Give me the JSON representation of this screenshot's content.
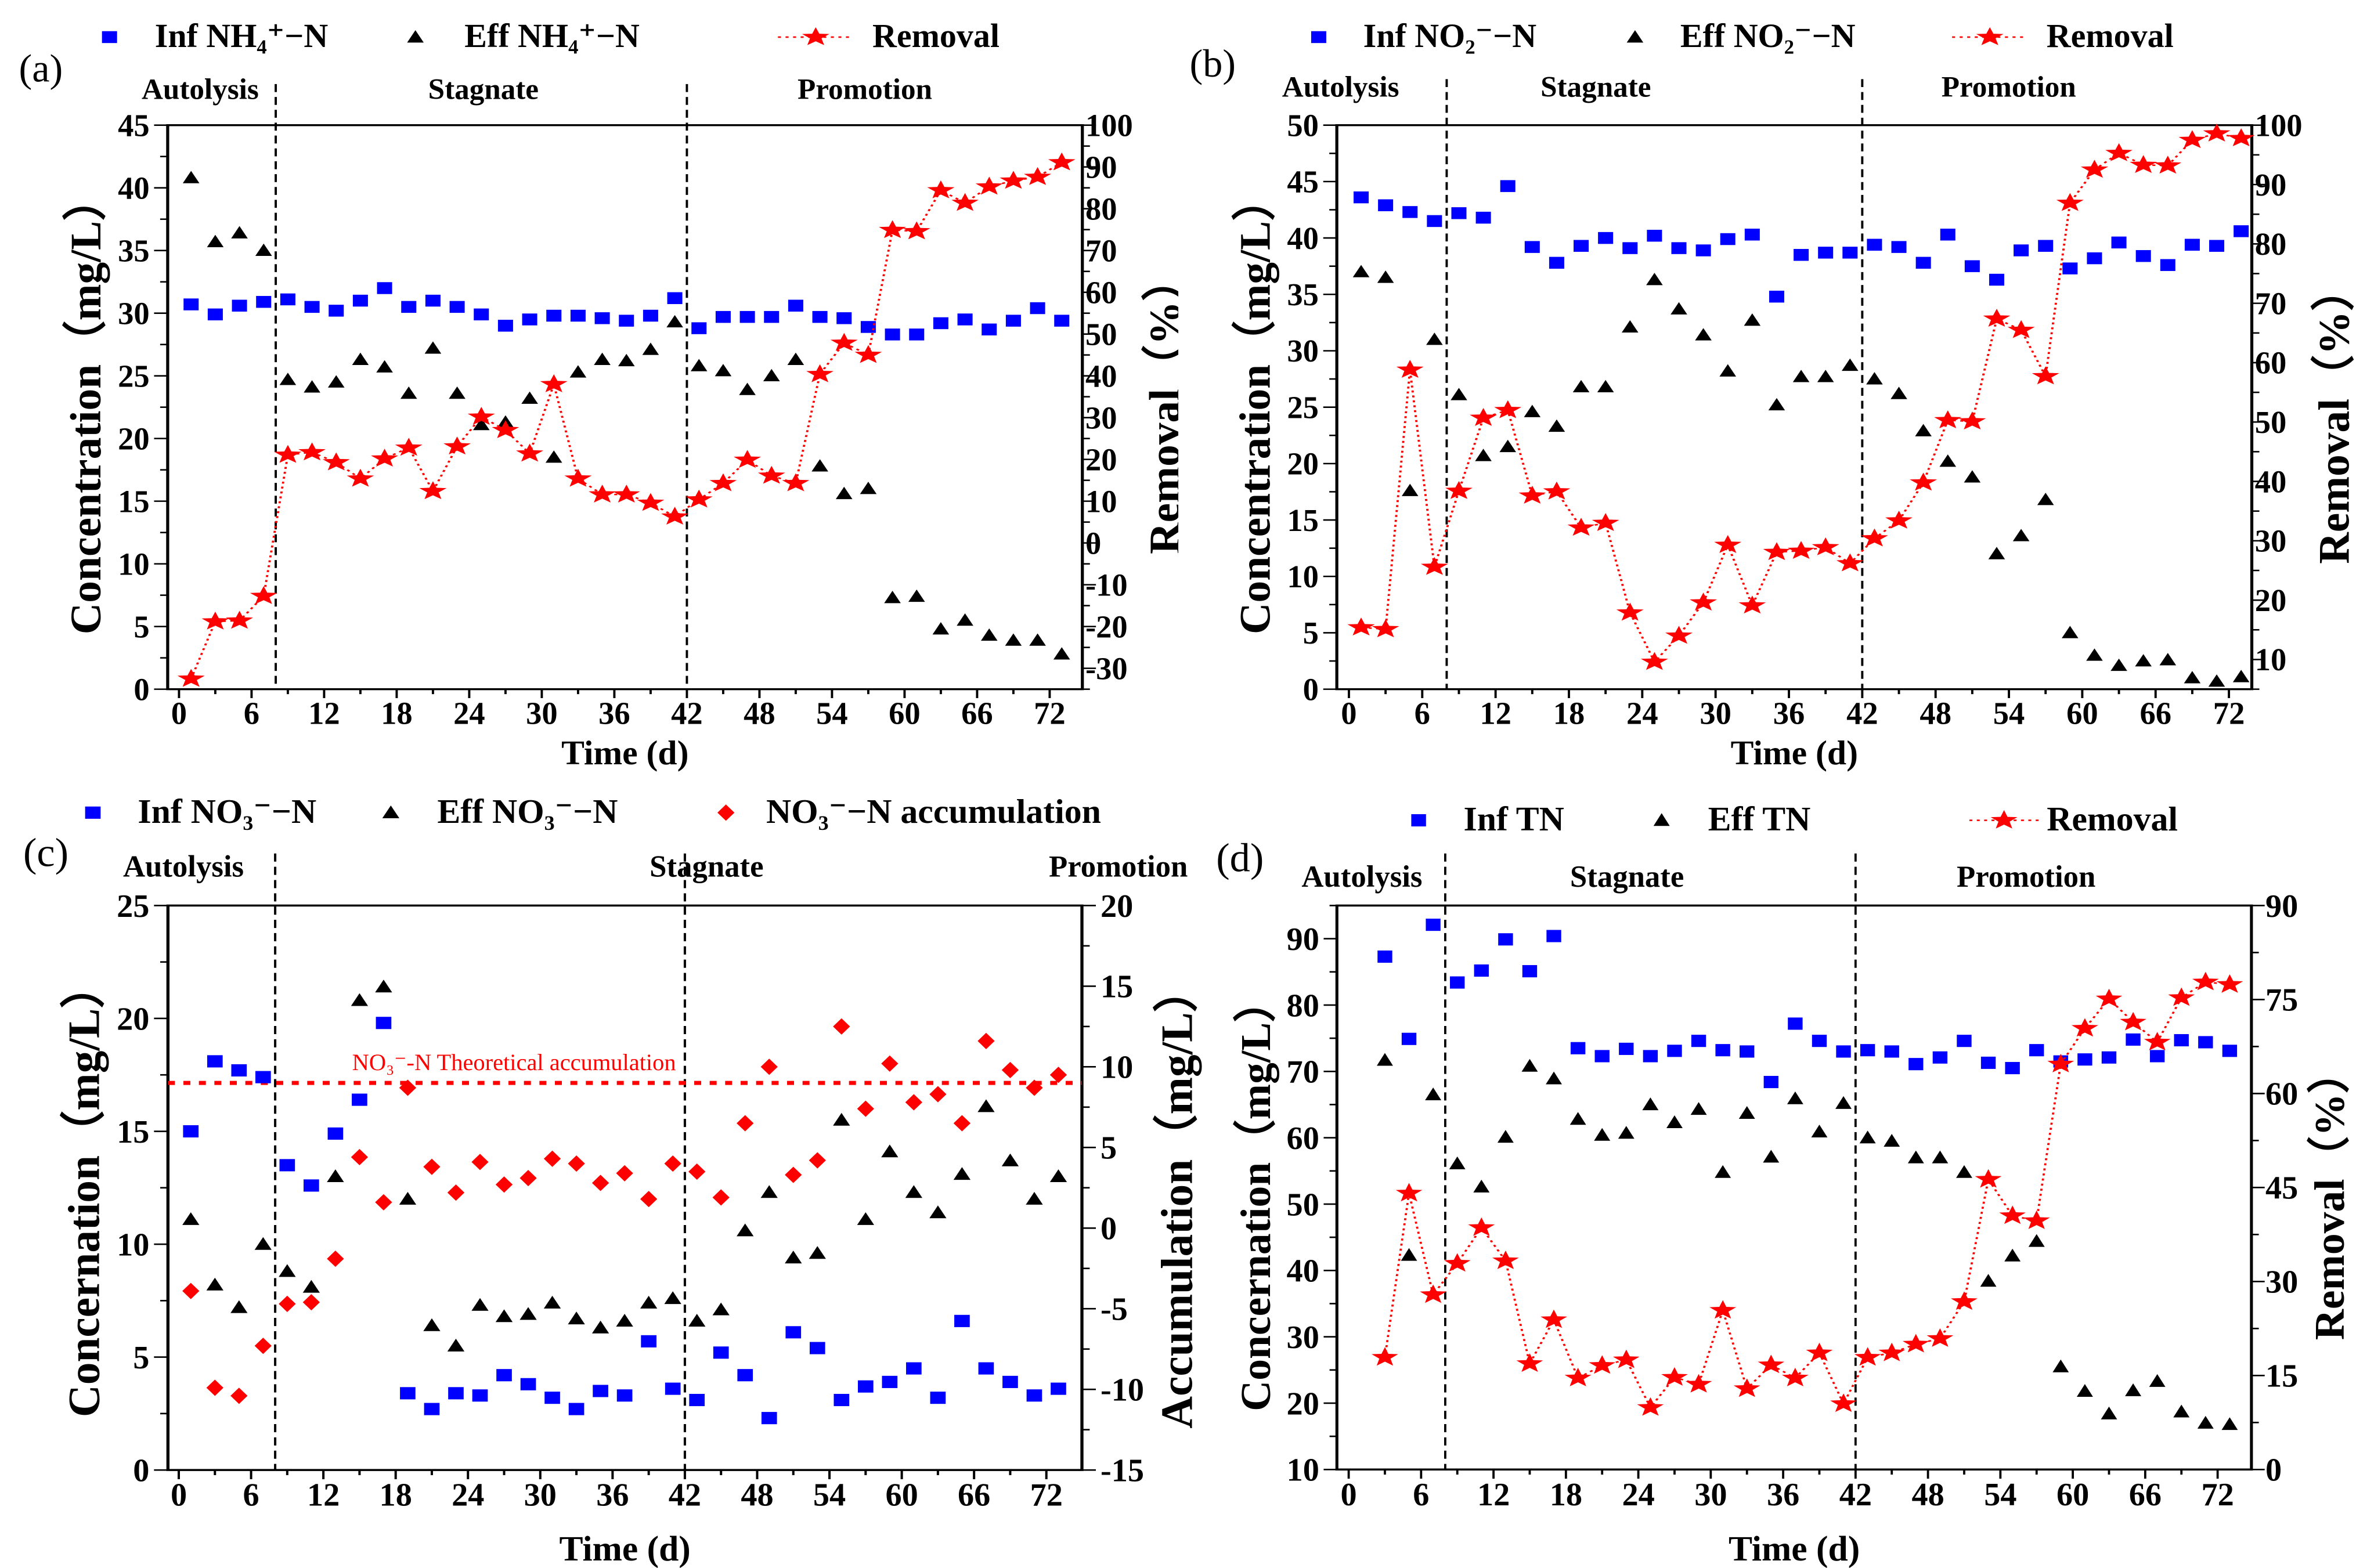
{
  "colors": {
    "inf": "#0000ff",
    "eff": "#000000",
    "removal": "#ff0000"
  },
  "chart_data": [
    {
      "type": "scatter",
      "panel_label": "(a)",
      "xlabel": "Time (d)",
      "ylabel_left": "Concentration（mg/L）",
      "ylabel_right": "Removal（%）",
      "ylim_left": [
        0,
        45
      ],
      "ylim_right": [
        -35,
        100
      ],
      "xticks": [
        0,
        6,
        12,
        18,
        24,
        30,
        36,
        42,
        48,
        54,
        60,
        66,
        72
      ],
      "yticks_left": [
        0,
        5,
        10,
        15,
        20,
        25,
        30,
        35,
        40,
        45
      ],
      "yticks_right": [
        -30,
        -20,
        -10,
        0,
        10,
        20,
        30,
        40,
        50,
        60,
        70,
        80,
        90,
        100
      ],
      "phases": [
        "Autolysis",
        "Stagnate",
        "Promotion"
      ],
      "phase_boundaries": [
        8,
        42
      ],
      "x": [
        1,
        3,
        5,
        7,
        9,
        11,
        13,
        15,
        17,
        19,
        21,
        23,
        25,
        27,
        29,
        31,
        33,
        35,
        37,
        39,
        41,
        43,
        45,
        47,
        49,
        51,
        53,
        55,
        57,
        59,
        61,
        63,
        65,
        67,
        69,
        71,
        73
      ],
      "series": [
        {
          "name": "Inf NH₄⁺−N",
          "marker": "square",
          "color": "#0000ff",
          "axis": "left",
          "line": false,
          "y": [
            30.7,
            29.9,
            30.6,
            30.9,
            31.1,
            30.5,
            30.2,
            31.0,
            32.0,
            30.5,
            31.0,
            30.5,
            29.9,
            29.0,
            29.5,
            29.8,
            29.8,
            29.6,
            29.4,
            29.8,
            31.2,
            28.8,
            29.7,
            29.7,
            29.7,
            30.6,
            29.7,
            29.6,
            28.9,
            28.3,
            28.3,
            29.2,
            29.5,
            28.7,
            29.4,
            30.4,
            29.4
          ]
        },
        {
          "name": "Eff NH₄⁺−N",
          "marker": "triangle",
          "color": "#000000",
          "axis": "left",
          "line": false,
          "y": [
            40.8,
            35.7,
            36.4,
            35.0,
            24.7,
            24.1,
            24.5,
            26.3,
            25.7,
            23.6,
            27.2,
            23.6,
            21.1,
            21.3,
            23.2,
            18.5,
            25.3,
            26.3,
            26.2,
            27.1,
            29.3,
            25.8,
            25.4,
            23.9,
            25.0,
            26.3,
            17.8,
            15.6,
            16.0,
            7.3,
            7.4,
            4.8,
            5.5,
            4.3,
            3.9,
            3.9,
            2.8
          ]
        },
        {
          "name": "Removal",
          "marker": "star",
          "color": "#ff0000",
          "axis": "right",
          "line": true,
          "y": [
            -32.5,
            -18.8,
            -18.6,
            -12.7,
            21.1,
            21.7,
            19.3,
            15.4,
            20.2,
            22.8,
            12.4,
            23.1,
            30.2,
            27.0,
            21.4,
            38.0,
            15.4,
            11.6,
            11.6,
            9.6,
            6.3,
            10.4,
            14.3,
            19.9,
            16.1,
            14.3,
            40.4,
            47.9,
            45.0,
            74.9,
            74.6,
            84.4,
            81.4,
            85.3,
            86.7,
            87.6,
            91.1
          ]
        }
      ]
    },
    {
      "type": "scatter",
      "panel_label": "(b)",
      "xlabel": "Time (d)",
      "ylabel_left": "Concentration（mg/L）",
      "ylabel_right": "Removal（%）",
      "ylim_left": [
        0,
        50
      ],
      "ylim_right": [
        5,
        100
      ],
      "xticks": [
        0,
        6,
        12,
        18,
        24,
        30,
        36,
        42,
        48,
        54,
        60,
        66,
        72
      ],
      "yticks_left": [
        0,
        5,
        10,
        15,
        20,
        25,
        30,
        35,
        40,
        45,
        50
      ],
      "yticks_right": [
        10,
        20,
        30,
        40,
        50,
        60,
        70,
        80,
        90,
        100
      ],
      "phases": [
        "Autolysis",
        "Stagnate",
        "Promotion"
      ],
      "phase_boundaries": [
        8,
        42
      ],
      "x": [
        1,
        3,
        5,
        7,
        9,
        11,
        13,
        15,
        17,
        19,
        21,
        23,
        25,
        27,
        29,
        31,
        33,
        35,
        37,
        39,
        41,
        43,
        45,
        47,
        49,
        51,
        53,
        55,
        57,
        59,
        61,
        63,
        65,
        67,
        69,
        71,
        73
      ],
      "series": [
        {
          "name": "Inf NO₂⁻−N",
          "marker": "square",
          "color": "#0000ff",
          "axis": "left",
          "line": false,
          "y": [
            43.6,
            42.9,
            42.3,
            41.5,
            42.2,
            41.8,
            44.6,
            39.2,
            37.8,
            39.3,
            40.0,
            39.1,
            40.2,
            39.1,
            38.9,
            39.9,
            40.3,
            34.8,
            38.5,
            38.7,
            38.7,
            39.4,
            39.2,
            37.8,
            40.3,
            37.5,
            36.3,
            38.9,
            39.3,
            37.3,
            38.2,
            39.6,
            38.4,
            37.6,
            39.4,
            39.3,
            40.6
          ]
        },
        {
          "name": "Eff NO₂⁻−N",
          "marker": "triangle",
          "color": "#000000",
          "axis": "left",
          "line": false,
          "y": [
            37.0,
            36.5,
            17.6,
            31.0,
            26.1,
            20.7,
            21.5,
            24.6,
            23.3,
            26.8,
            26.8,
            32.1,
            36.3,
            33.7,
            31.4,
            28.2,
            32.7,
            25.2,
            27.7,
            27.7,
            28.7,
            27.5,
            26.2,
            22.9,
            20.2,
            18.8,
            12.0,
            13.6,
            16.8,
            5.0,
            3.0,
            2.1,
            2.5,
            2.6,
            1.0,
            0.7,
            1.1
          ]
        },
        {
          "name": "Removal",
          "marker": "star",
          "color": "#ff0000",
          "axis": "right",
          "line": true,
          "y": [
            15.4,
            15.1,
            58.8,
            25.6,
            38.4,
            50.7,
            52.0,
            37.6,
            38.3,
            32.2,
            33.0,
            17.9,
            9.6,
            14.0,
            19.6,
            29.3,
            19.1,
            28.1,
            28.3,
            28.9,
            26.2,
            30.4,
            33.4,
            39.8,
            50.3,
            50.1,
            67.4,
            65.5,
            57.7,
            86.9,
            92.5,
            95.3,
            93.3,
            93.2,
            97.5,
            98.6,
            97.8
          ]
        }
      ]
    },
    {
      "type": "scatter",
      "panel_label": "(c)",
      "xlabel": "Time (d)",
      "ylabel_left": "Concernation（mg/L）",
      "ylabel_right": "Accumulation（mg/L）",
      "ylim_left": [
        0,
        25
      ],
      "ylim_right": [
        -15,
        20
      ],
      "xticks": [
        0,
        6,
        12,
        18,
        24,
        30,
        36,
        42,
        48,
        54,
        60,
        66,
        72
      ],
      "yticks_left": [
        0,
        5,
        10,
        15,
        20,
        25
      ],
      "yticks_right": [
        -15,
        -10,
        -5,
        0,
        5,
        10,
        15,
        20
      ],
      "phases": [
        "Autolysis",
        "Stagnate",
        "Promotion"
      ],
      "phase_boundaries": [
        8,
        42
      ],
      "reference_line": {
        "label": "NO₃⁻-N Theoretical accumulation",
        "axis": "right",
        "value": 9
      },
      "x": [
        1,
        3,
        5,
        7,
        9,
        11,
        13,
        15,
        17,
        19,
        21,
        23,
        25,
        27,
        29,
        31,
        33,
        35,
        37,
        39,
        41,
        43,
        45,
        47,
        49,
        51,
        53,
        55,
        57,
        59,
        61,
        63,
        65,
        67,
        69,
        71,
        73
      ],
      "series": [
        {
          "name": "Inf NO₃⁻−N",
          "marker": "square",
          "color": "#0000ff",
          "axis": "left",
          "line": false,
          "y": [
            15.0,
            18.1,
            17.7,
            17.4,
            13.5,
            12.6,
            14.9,
            16.4,
            19.8,
            3.4,
            2.7,
            3.4,
            3.3,
            4.2,
            3.8,
            3.2,
            2.7,
            3.5,
            3.3,
            5.7,
            3.6,
            3.1,
            5.2,
            4.2,
            2.3,
            6.1,
            5.4,
            3.1,
            3.7,
            3.9,
            4.5,
            3.2,
            6.6,
            4.5,
            3.9,
            3.3,
            3.6
          ]
        },
        {
          "name": "Eff NO₃⁻−N",
          "marker": "triangle",
          "color": "#000000",
          "axis": "left",
          "line": false,
          "y": [
            11.1,
            8.2,
            7.2,
            10.0,
            8.8,
            8.1,
            13.0,
            20.8,
            21.4,
            12.0,
            6.4,
            5.5,
            7.3,
            6.8,
            6.9,
            7.4,
            6.7,
            6.3,
            6.6,
            7.4,
            7.6,
            6.6,
            7.1,
            10.6,
            12.3,
            9.4,
            9.6,
            15.5,
            11.1,
            14.1,
            12.3,
            11.4,
            13.1,
            16.1,
            13.7,
            12.0,
            13.0
          ]
        },
        {
          "name": "NO₃⁻−N accumulation",
          "marker": "diamond",
          "color": "#ff0000",
          "axis": "right",
          "line": false,
          "y": [
            -3.9,
            -9.9,
            -10.4,
            -7.3,
            -4.7,
            -4.6,
            -1.9,
            4.4,
            1.6,
            8.7,
            3.8,
            2.2,
            4.1,
            2.7,
            3.1,
            4.3,
            4.0,
            2.8,
            3.4,
            1.8,
            4.0,
            3.5,
            1.9,
            6.5,
            10.0,
            3.3,
            4.2,
            12.5,
            7.4,
            10.2,
            7.8,
            8.3,
            6.5,
            11.6,
            9.8,
            8.7,
            9.5
          ]
        }
      ]
    },
    {
      "type": "scatter",
      "panel_label": "(d)",
      "xlabel": "Time (d)",
      "ylabel_left": "Concernation（mg/L）",
      "ylabel_right": "Removal（%）",
      "ylim_left": [
        10,
        95
      ],
      "ylim_right": [
        0,
        90
      ],
      "xticks": [
        0,
        6,
        12,
        18,
        24,
        30,
        36,
        42,
        48,
        54,
        60,
        66,
        72
      ],
      "yticks_left": [
        10,
        20,
        30,
        40,
        50,
        60,
        70,
        80,
        90
      ],
      "yticks_right": [
        0,
        15,
        30,
        45,
        60,
        75,
        90
      ],
      "phases": [
        "Autolysis",
        "Stagnate",
        "Promotion"
      ],
      "phase_boundaries": [
        8,
        42
      ],
      "x": [
        3,
        5,
        7,
        9,
        11,
        13,
        15,
        17,
        19,
        21,
        23,
        25,
        27,
        29,
        31,
        33,
        35,
        37,
        39,
        41,
        43,
        45,
        47,
        49,
        51,
        53,
        55,
        57,
        59,
        61,
        63,
        65,
        67,
        69,
        71,
        73
      ],
      "series": [
        {
          "name": "Inf TN",
          "marker": "square",
          "color": "#0000ff",
          "axis": "left",
          "line": false,
          "y": [
            87.3,
            74.9,
            92.1,
            83.4,
            85.2,
            89.9,
            85.1,
            90.4,
            73.5,
            72.3,
            73.4,
            72.3,
            73.1,
            74.6,
            73.2,
            73.0,
            68.4,
            77.2,
            74.6,
            73.0,
            73.2,
            73.0,
            71.1,
            72.1,
            74.6,
            71.3,
            70.5,
            73.2,
            71.5,
            71.8,
            72.1,
            74.8,
            72.3,
            74.7,
            74.4,
            73.1
          ]
        },
        {
          "name": "Eff TN",
          "marker": "triangle",
          "color": "#000000",
          "axis": "left",
          "line": false,
          "y": [
            71.7,
            42.3,
            66.5,
            56.1,
            52.6,
            60.1,
            70.8,
            68.9,
            62.8,
            60.4,
            60.7,
            65.0,
            62.3,
            64.3,
            54.8,
            63.7,
            57.1,
            65.9,
            60.9,
            65.2,
            60.0,
            59.5,
            57.0,
            57.0,
            54.8,
            38.4,
            42.2,
            44.4,
            25.5,
            21.8,
            18.4,
            21.9,
            23.3,
            18.7,
            17.0,
            16.8
          ]
        },
        {
          "name": "Removal",
          "marker": "star",
          "color": "#ff0000",
          "axis": "right",
          "line": true,
          "y": [
            17.9,
            44.1,
            27.9,
            32.9,
            38.6,
            33.3,
            16.9,
            23.9,
            14.6,
            16.6,
            17.5,
            9.9,
            14.7,
            13.6,
            25.4,
            12.9,
            16.7,
            14.6,
            18.6,
            10.5,
            17.9,
            18.6,
            20.0,
            20.9,
            26.8,
            46.3,
            40.5,
            39.7,
            64.7,
            70.4,
            75.1,
            71.4,
            68.2,
            75.3,
            77.8,
            77.4
          ]
        }
      ]
    }
  ]
}
